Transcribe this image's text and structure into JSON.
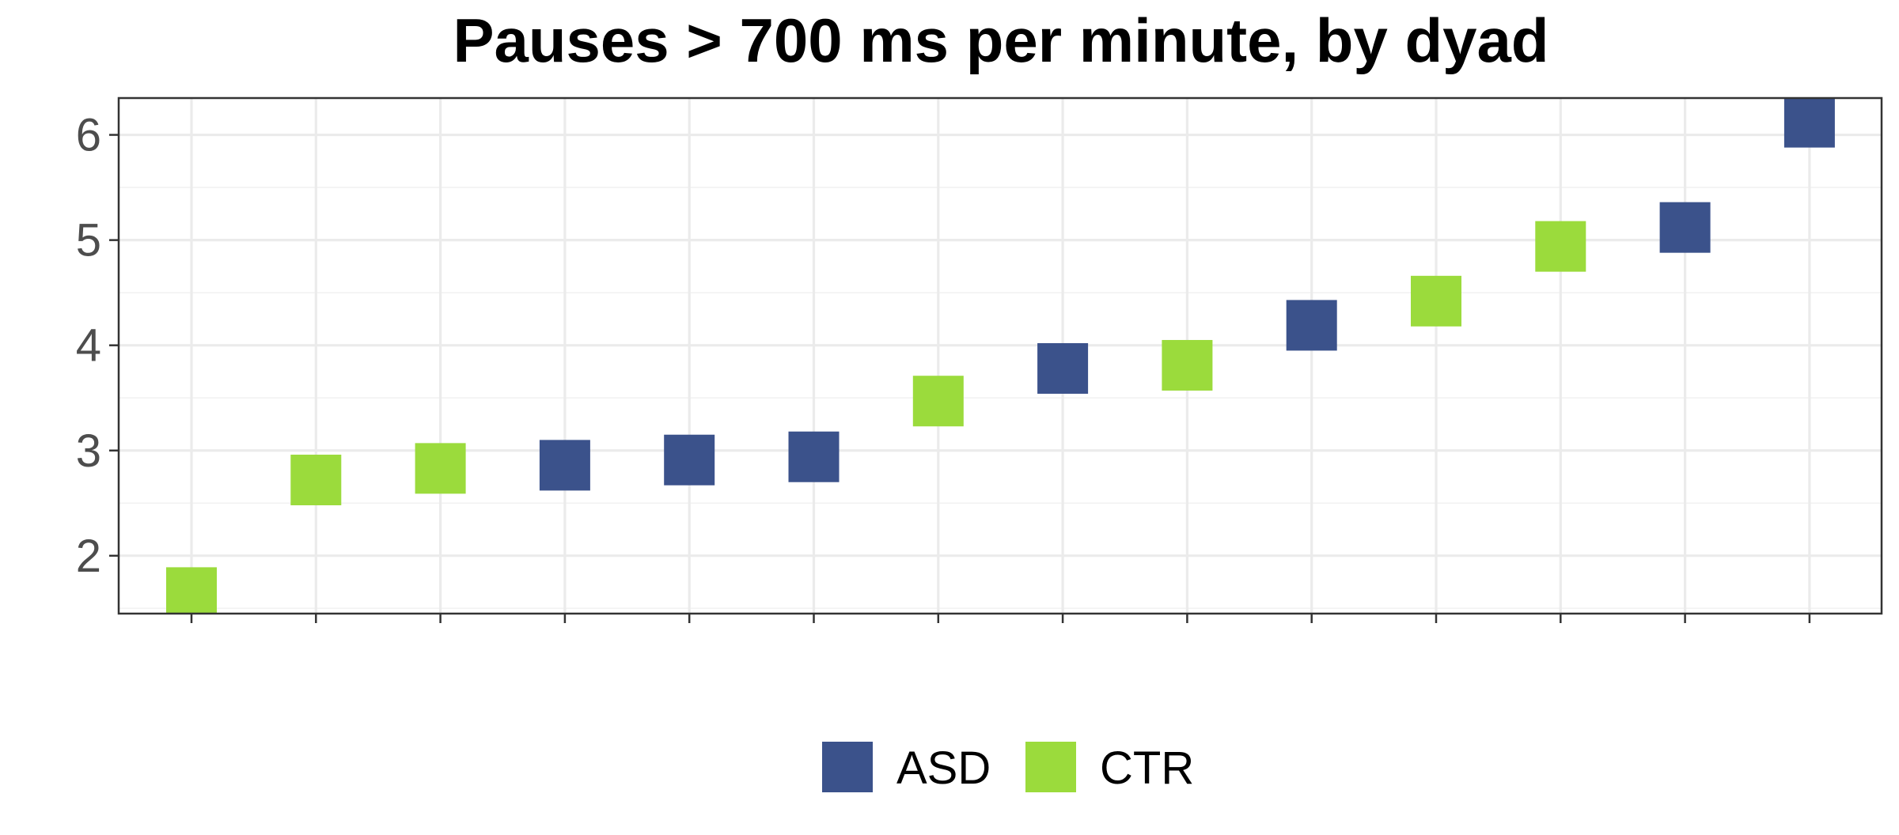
{
  "chart_data": {
    "type": "scatter",
    "title": "Pauses > 700 ms per minute, by dyad",
    "xlabel": "",
    "ylabel": "",
    "x_count": 14,
    "ylim": [
      1.45,
      6.35
    ],
    "y_ticks": [
      2,
      3,
      4,
      5,
      6
    ],
    "grid": true,
    "legend_position": "bottom",
    "series": [
      {
        "name": "ASD",
        "color": "#3B528B",
        "marker": "square",
        "x": [
          4,
          5,
          6,
          8,
          10,
          13,
          14
        ],
        "y": [
          2.86,
          2.91,
          2.94,
          3.78,
          4.19,
          5.12,
          6.12
        ]
      },
      {
        "name": "CTR",
        "color": "#9BDB3C",
        "marker": "square",
        "x": [
          1,
          2,
          3,
          7,
          9,
          11,
          12
        ],
        "y": [
          1.65,
          2.72,
          2.83,
          3.47,
          3.81,
          4.42,
          4.94
        ]
      }
    ]
  }
}
